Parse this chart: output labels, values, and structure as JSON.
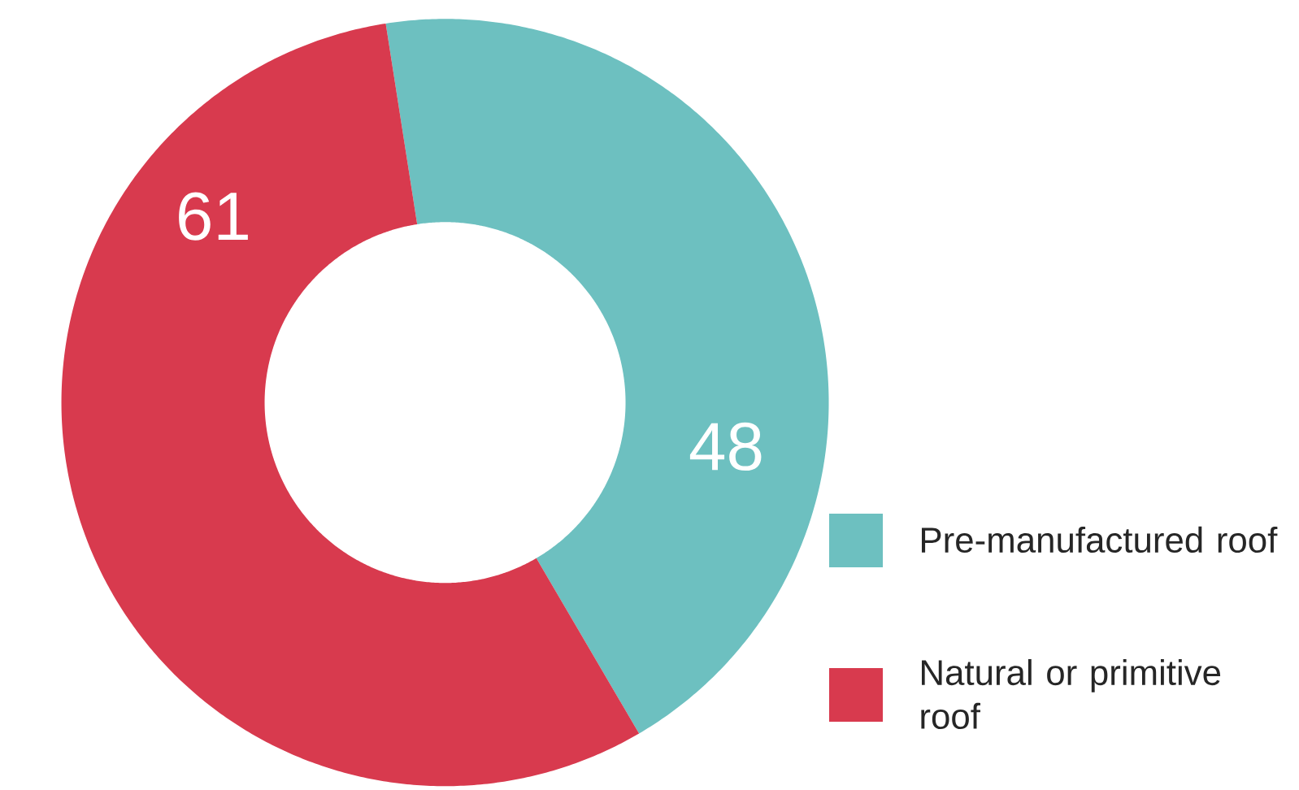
{
  "chart_data": {
    "type": "donut",
    "categories": [
      "Pre-manufactured roof",
      "Natural or primitive roof"
    ],
    "values": [
      48,
      61
    ],
    "colors": [
      "#6dc0c0",
      "#d83a4e"
    ],
    "data_labels": true,
    "legend": "right"
  }
}
